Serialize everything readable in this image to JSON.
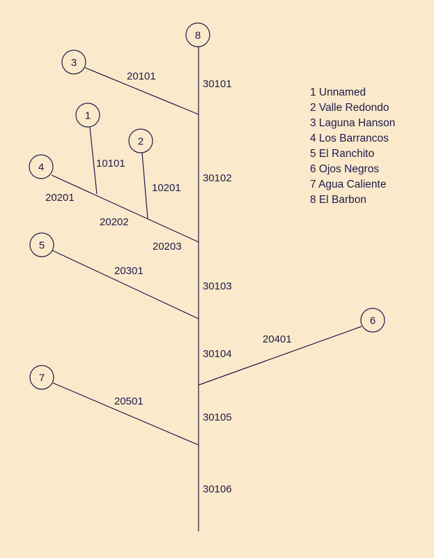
{
  "colors": {
    "background": "#FAEACB",
    "ink": "#1E1A48"
  },
  "nodes": [
    {
      "id": "1",
      "label": "1"
    },
    {
      "id": "2",
      "label": "2"
    },
    {
      "id": "3",
      "label": "3"
    },
    {
      "id": "4",
      "label": "4"
    },
    {
      "id": "5",
      "label": "5"
    },
    {
      "id": "6",
      "label": "6"
    },
    {
      "id": "7",
      "label": "7"
    },
    {
      "id": "8",
      "label": "8"
    }
  ],
  "segments": [
    {
      "id": "30101",
      "label": "30101"
    },
    {
      "id": "30102",
      "label": "30102"
    },
    {
      "id": "30103",
      "label": "30103"
    },
    {
      "id": "30104",
      "label": "30104"
    },
    {
      "id": "30105",
      "label": "30105"
    },
    {
      "id": "30106",
      "label": "30106"
    },
    {
      "id": "20101",
      "label": "20101"
    },
    {
      "id": "20201",
      "label": "20201"
    },
    {
      "id": "20202",
      "label": "20202"
    },
    {
      "id": "20203",
      "label": "20203"
    },
    {
      "id": "10101",
      "label": "10101"
    },
    {
      "id": "10201",
      "label": "10201"
    },
    {
      "id": "20301",
      "label": "20301"
    },
    {
      "id": "20401",
      "label": "20401"
    },
    {
      "id": "20501",
      "label": "20501"
    }
  ],
  "legend": [
    "1 Unnamed",
    "2 Valle Redondo",
    "3 Laguna Hanson",
    "4 Los Barrancos",
    "5 El Ranchito",
    "6 Ojos Negros",
    "7 Agua Caliente",
    "8 El Barbon"
  ]
}
